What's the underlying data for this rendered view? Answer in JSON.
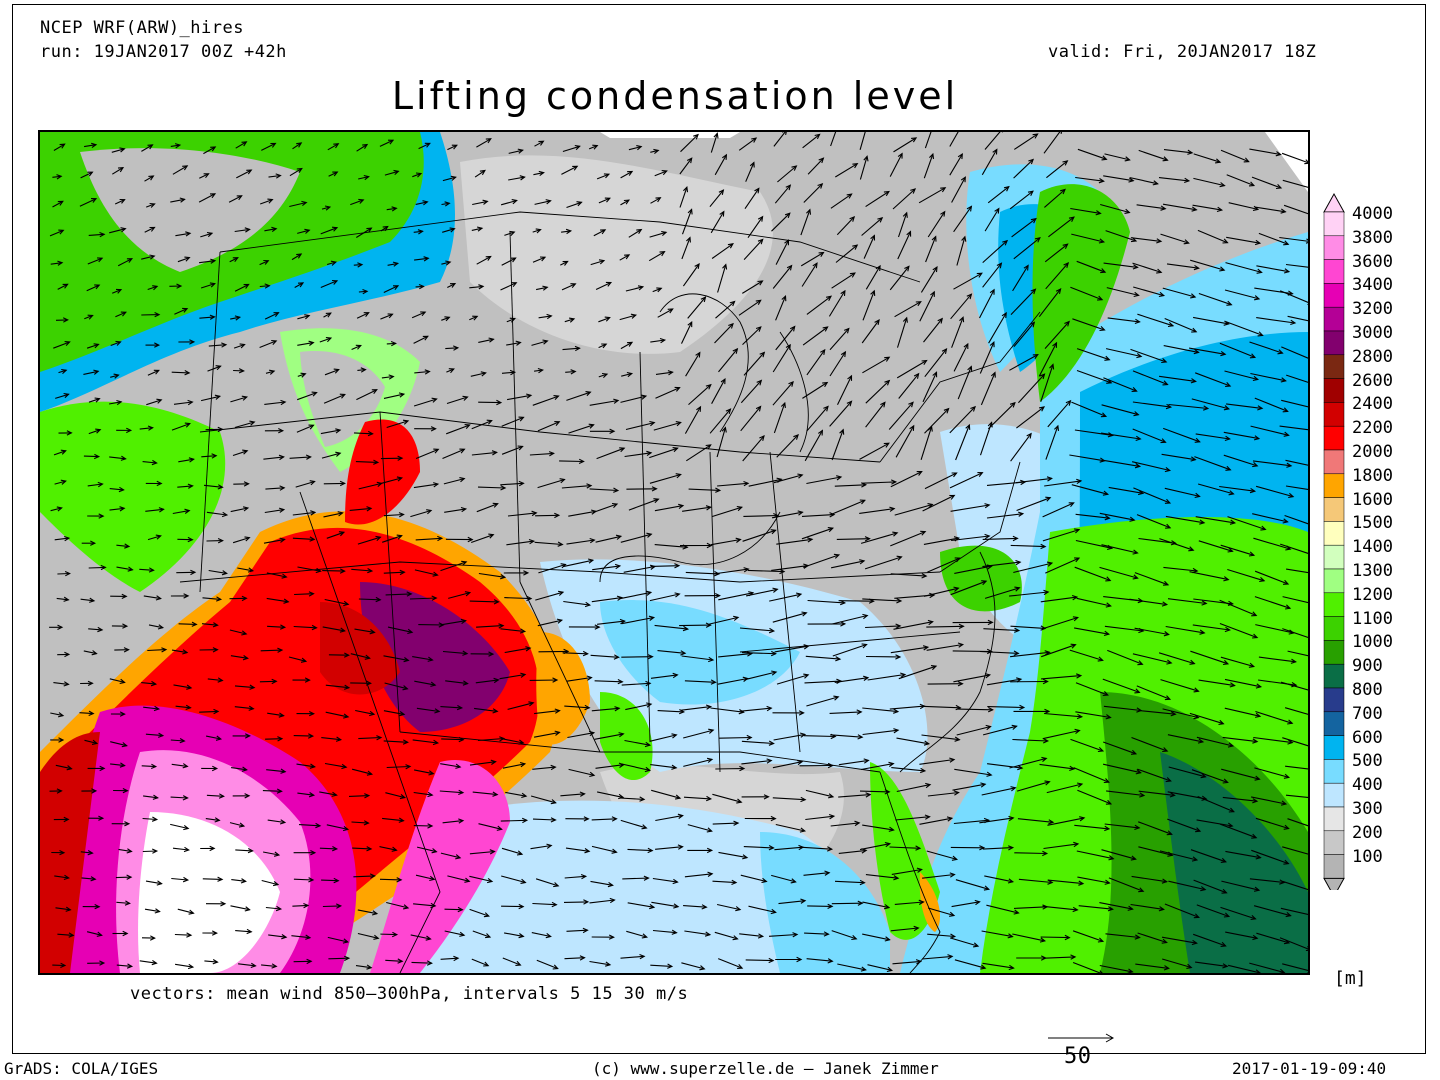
{
  "header": {
    "model": "NCEP WRF(ARW)_hires",
    "run": "run: 19JAN2017 00Z +42h",
    "valid": "valid: Fri, 20JAN2017 18Z",
    "title": "Lifting condensation level"
  },
  "map": {
    "subject": "Lifting condensation level over the contiguous United States with mean wind vectors",
    "vectors_caption": "vectors: mean wind 850–300hPa, intervals 5 15 30 m/s"
  },
  "legend": {
    "unit": "[m]",
    "levels": [
      {
        "label": "4000",
        "color": "#ffd2f5"
      },
      {
        "label": "3800",
        "color": "#ff8ce6"
      },
      {
        "label": "3600",
        "color": "#ff46d2"
      },
      {
        "label": "3400",
        "color": "#e600b4"
      },
      {
        "label": "3200",
        "color": "#b40096"
      },
      {
        "label": "3000",
        "color": "#82006e"
      },
      {
        "label": "2800",
        "color": "#7a2812"
      },
      {
        "label": "2600",
        "color": "#a00000"
      },
      {
        "label": "2400",
        "color": "#d20000"
      },
      {
        "label": "2200",
        "color": "#ff0000"
      },
      {
        "label": "2000",
        "color": "#f07878"
      },
      {
        "label": "1800",
        "color": "#ffa500"
      },
      {
        "label": "1600",
        "color": "#f5c878"
      },
      {
        "label": "1500",
        "color": "#ffffbe"
      },
      {
        "label": "1400",
        "color": "#d2ffbe"
      },
      {
        "label": "1300",
        "color": "#a0ff82"
      },
      {
        "label": "1200",
        "color": "#50f000"
      },
      {
        "label": "1100",
        "color": "#3cd200"
      },
      {
        "label": "1000",
        "color": "#28a000"
      },
      {
        "label": "900",
        "color": "#0a6e46"
      },
      {
        "label": "800",
        "color": "#283c8c"
      },
      {
        "label": "700",
        "color": "#1464a0"
      },
      {
        "label": "600",
        "color": "#00b4f0"
      },
      {
        "label": "500",
        "color": "#78dcff"
      },
      {
        "label": "400",
        "color": "#bee6ff"
      },
      {
        "label": "300",
        "color": "#e6e6e6"
      },
      {
        "label": "200",
        "color": "#c8c8c8"
      },
      {
        "label": "100",
        "color": "#b4b4b4"
      }
    ]
  },
  "footer": {
    "left": "GrADS: COLA/IGES",
    "center": "(c) www.superzelle.de – Janek Zimmer",
    "right": "2017-01-19-09:40",
    "scale_label": "50"
  }
}
